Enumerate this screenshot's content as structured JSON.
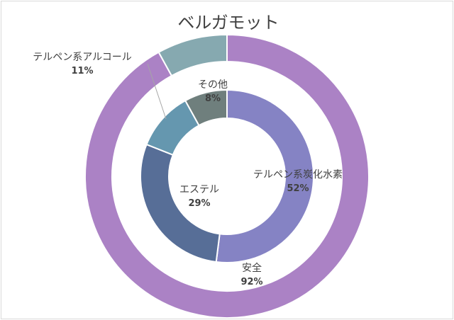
{
  "chart_data": {
    "type": "pie",
    "title": "ベルガモット",
    "rings": [
      {
        "level": "outer",
        "slices": [
          {
            "label": "安全",
            "percent_label": "92%",
            "value": 92,
            "color": "#AB82C5"
          },
          {
            "label": "",
            "percent_label": "",
            "value": 8,
            "color": "#86A9B0"
          }
        ]
      },
      {
        "level": "inner",
        "slices": [
          {
            "label": "テルペン系炭化水素",
            "percent_label": "52%",
            "value": 52,
            "color": "#8583C4"
          },
          {
            "label": "エステル",
            "percent_label": "29%",
            "value": 29,
            "color": "#576E97"
          },
          {
            "label": "テルペン系アルコール",
            "percent_label": "11%",
            "value": 11,
            "color": "#6597AF"
          },
          {
            "label": "その他",
            "percent_label": "8%",
            "value": 8,
            "color": "#6F7F7D"
          }
        ]
      }
    ]
  }
}
